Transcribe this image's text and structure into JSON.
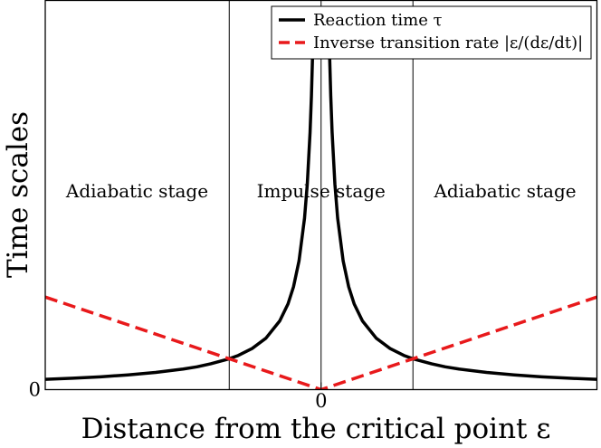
{
  "chart_data": {
    "type": "line",
    "xlabel": "Distance from the critical point ε",
    "ylabel": "Time scales",
    "x_tick_labels": [
      {
        "value": 0,
        "label": "0"
      }
    ],
    "y_tick_labels": [
      {
        "value": 0,
        "label": "0"
      }
    ],
    "xlim": [
      -1.0,
      1.0
    ],
    "ylim": [
      0,
      1.4
    ],
    "grid": false,
    "legend": {
      "position": "top-right",
      "entries": [
        {
          "label": "Reaction time τ",
          "color": "#000000",
          "style": "solid"
        },
        {
          "label": "Inverse transition rate |ε/(dε/dt)|",
          "color": "#e8191b",
          "style": "dashed"
        }
      ]
    },
    "freeze_out_points": [
      -0.333,
      0.333
    ],
    "series": [
      {
        "name": "Reaction time τ",
        "color": "#000000",
        "style": "solid",
        "x": [
          -1.0,
          -0.9,
          -0.8,
          -0.7,
          -0.6,
          -0.5,
          -0.45,
          -0.4,
          -0.333,
          -0.3,
          -0.25,
          -0.2,
          -0.15,
          -0.12,
          -0.1,
          -0.08,
          -0.06,
          -0.05,
          -0.04,
          -0.035,
          -0.03,
          -0.027,
          0.027,
          0.03,
          0.035,
          0.04,
          0.05,
          0.06,
          0.08,
          0.1,
          0.12,
          0.15,
          0.2,
          0.25,
          0.3,
          0.333,
          0.4,
          0.45,
          0.5,
          0.6,
          0.7,
          0.8,
          0.9,
          1.0
        ],
        "values": [
          0.037,
          0.041,
          0.046,
          0.053,
          0.062,
          0.074,
          0.082,
          0.093,
          0.111,
          0.123,
          0.148,
          0.185,
          0.247,
          0.308,
          0.37,
          0.463,
          0.617,
          0.74,
          0.925,
          1.057,
          1.233,
          1.37,
          1.37,
          1.233,
          1.057,
          0.925,
          0.74,
          0.617,
          0.463,
          0.37,
          0.308,
          0.247,
          0.185,
          0.148,
          0.123,
          0.111,
          0.093,
          0.082,
          0.074,
          0.062,
          0.053,
          0.046,
          0.041,
          0.037
        ]
      },
      {
        "name": "Inverse transition rate |ε/(dε/dt)|",
        "color": "#e8191b",
        "style": "dashed",
        "x": [
          -1.0,
          -0.333,
          0.0,
          0.333,
          1.0
        ],
        "values": [
          0.333,
          0.111,
          0.0,
          0.111,
          0.333
        ]
      }
    ],
    "annotations": [
      {
        "text": "Adiabatic stage",
        "x": -0.667
      },
      {
        "text": "Impulse stage",
        "x": 0.0
      },
      {
        "text": "Adiabatic stage",
        "x": 0.667
      }
    ]
  }
}
